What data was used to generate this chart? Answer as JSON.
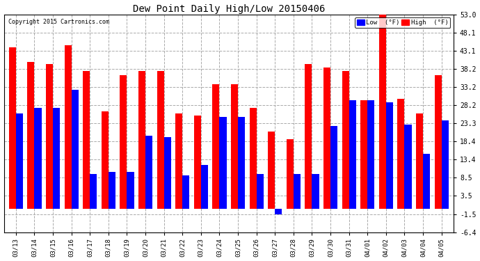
{
  "title": "Dew Point Daily High/Low 20150406",
  "copyright": "Copyright 2015 Cartronics.com",
  "dates": [
    "03/13",
    "03/14",
    "03/15",
    "03/16",
    "03/17",
    "03/18",
    "03/19",
    "03/20",
    "03/21",
    "03/22",
    "03/23",
    "03/24",
    "03/25",
    "03/26",
    "03/27",
    "03/28",
    "03/29",
    "03/30",
    "03/31",
    "04/01",
    "04/02",
    "04/03",
    "04/04",
    "04/05"
  ],
  "high": [
    44.0,
    40.0,
    39.5,
    44.5,
    37.5,
    26.5,
    36.5,
    37.5,
    37.5,
    26.0,
    25.5,
    34.0,
    34.0,
    27.5,
    21.0,
    19.0,
    39.5,
    38.5,
    37.5,
    29.5,
    53.0,
    30.0,
    26.0,
    36.5
  ],
  "low": [
    26.0,
    27.5,
    27.5,
    32.5,
    9.5,
    10.0,
    10.0,
    20.0,
    19.5,
    9.0,
    12.0,
    25.0,
    25.0,
    9.5,
    -1.5,
    9.5,
    9.5,
    22.5,
    29.5,
    29.5,
    29.0,
    23.0,
    15.0,
    24.0
  ],
  "ylim_min": -6.4,
  "ylim_max": 53.0,
  "yticks": [
    -6.4,
    -1.5,
    3.5,
    8.5,
    13.4,
    18.4,
    23.3,
    28.2,
    33.2,
    38.2,
    43.1,
    48.1,
    53.0
  ],
  "high_color": "#FF0000",
  "low_color": "#0000FF",
  "bg_color": "#FFFFFF",
  "grid_color": "#AAAAAA",
  "bar_width": 0.38,
  "legend_low_label": "Low  (°F)",
  "legend_high_label": "High  (°F)"
}
